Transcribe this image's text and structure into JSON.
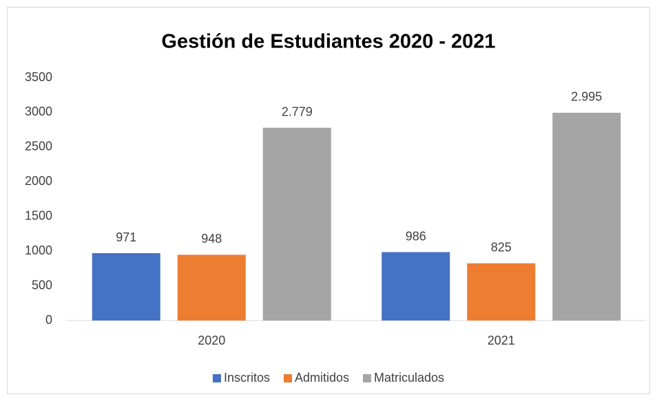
{
  "chart_data": {
    "type": "bar",
    "title": "Gestión de Estudiantes 2020 - 2021",
    "categories": [
      "2020",
      "2021"
    ],
    "series": [
      {
        "name": "Inscritos",
        "color": "#4472c4",
        "values": [
          971,
          986
        ]
      },
      {
        "name": "Admitidos",
        "color": "#ed7d31",
        "values": [
          948,
          825
        ]
      },
      {
        "name": "Matriculados",
        "color": "#a5a5a5",
        "values": [
          2779,
          2995
        ],
        "value_labels": [
          "2.779",
          "2.995"
        ]
      }
    ],
    "ylim": [
      0,
      3500
    ],
    "yticks": [
      0,
      500,
      1000,
      1500,
      2000,
      2500,
      3000,
      3500
    ],
    "grid": false,
    "legend": "bottom"
  }
}
